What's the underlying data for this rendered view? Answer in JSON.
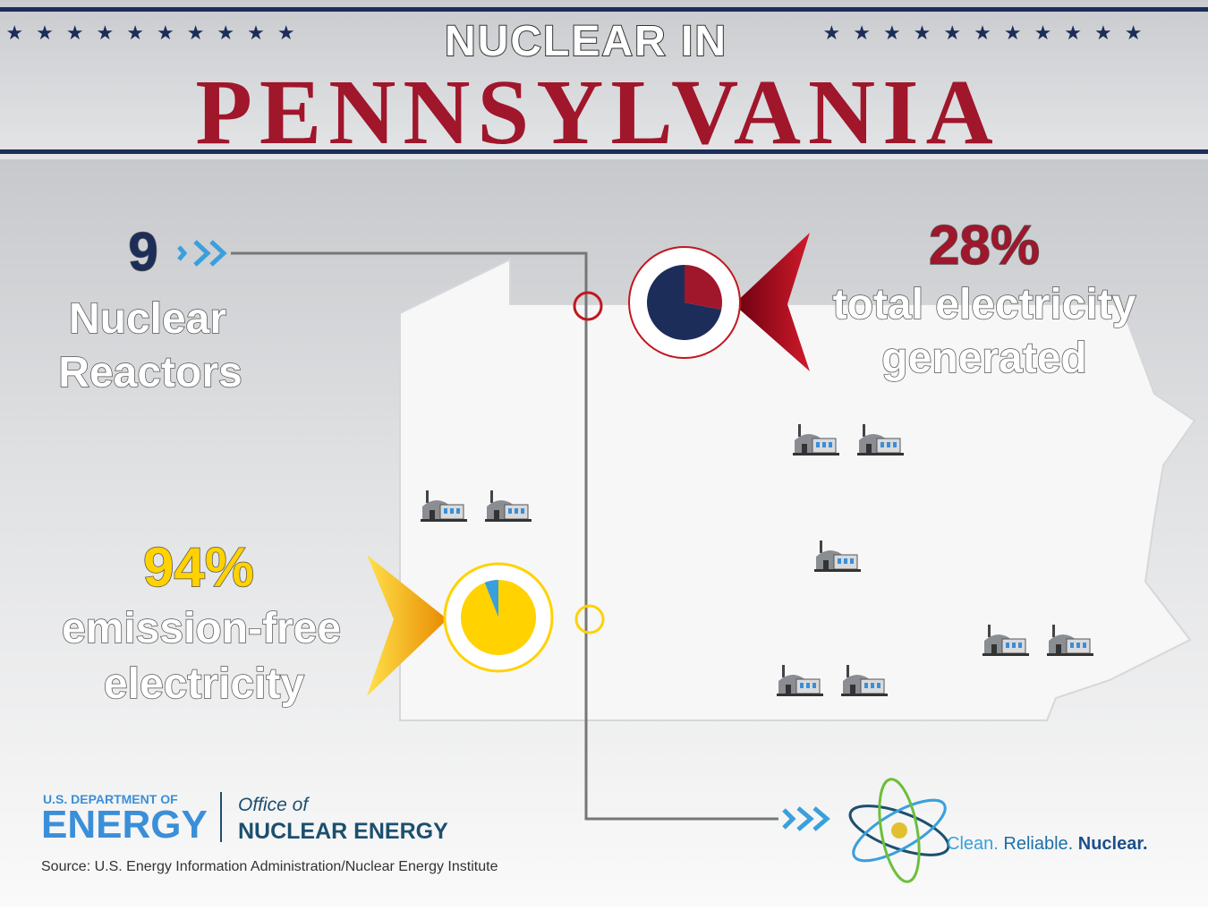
{
  "header": {
    "kicker": "NUCLEAR IN",
    "title": "PENNSYLVANIA"
  },
  "stats": {
    "reactors": {
      "value": 9,
      "caption": [
        "Nuclear",
        "Reactors"
      ]
    },
    "electricity": {
      "value": 28,
      "value_label": "28%",
      "caption": [
        "total electricity",
        "generated"
      ],
      "color": "#a0162b",
      "rest_color": "#1c2d5a"
    },
    "emission_free": {
      "value": 94,
      "value_label": "94%",
      "caption": [
        "emission-free",
        "electricity"
      ],
      "color": "#ffd200",
      "rest_color": "#3aa0dc"
    }
  },
  "logo": {
    "department": "U.S. DEPARTMENT OF",
    "energy": "ENERGY",
    "office": "Office of",
    "office_name": "NUCLEAR ENERGY"
  },
  "tagline": [
    "Clean.",
    "Reliable.",
    "Nuclear."
  ],
  "source": "Source: U.S. Energy Information Administration/Nuclear Energy Institute"
}
